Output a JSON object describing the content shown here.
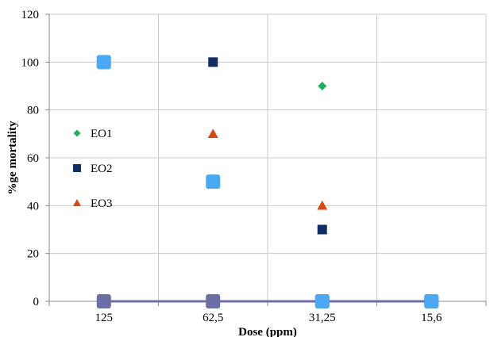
{
  "chart_data": {
    "type": "scatter",
    "title": "",
    "xlabel": "Dose (ppm)",
    "ylabel": "%ge mortality",
    "categories": [
      "125",
      "62,5",
      "31,25",
      "15,6"
    ],
    "y_ticks": [
      "0",
      "20",
      "40",
      "60",
      "80",
      "100",
      "120"
    ],
    "ylim": [
      0,
      120
    ],
    "grid": "vertical-and-horizontal",
    "legend_placement": "left-inside",
    "legend": [
      {
        "label": "EO1",
        "series": "EO1"
      },
      {
        "label": "EO2",
        "series": "EO2"
      },
      {
        "label": "EO3",
        "series": "EO3"
      }
    ],
    "series": [
      {
        "name": "EO1",
        "marker": "diamond",
        "color": "#1fae5c",
        "values": [
          null,
          null,
          90,
          null
        ]
      },
      {
        "name": "EO2",
        "marker": "square",
        "color": "#0f2d66",
        "values": [
          null,
          100,
          30,
          null
        ]
      },
      {
        "name": "EO3",
        "marker": "triangle",
        "color": "#d9480f",
        "values": [
          null,
          70,
          40,
          null
        ]
      },
      {
        "name": "",
        "marker": "square-large",
        "color": "#4aa8f5",
        "values": [
          100,
          50,
          0,
          0
        ]
      },
      {
        "name": "",
        "marker": "square-large-line",
        "color": "#6c6fa6",
        "values": [
          0,
          0,
          0,
          0
        ]
      }
    ]
  }
}
